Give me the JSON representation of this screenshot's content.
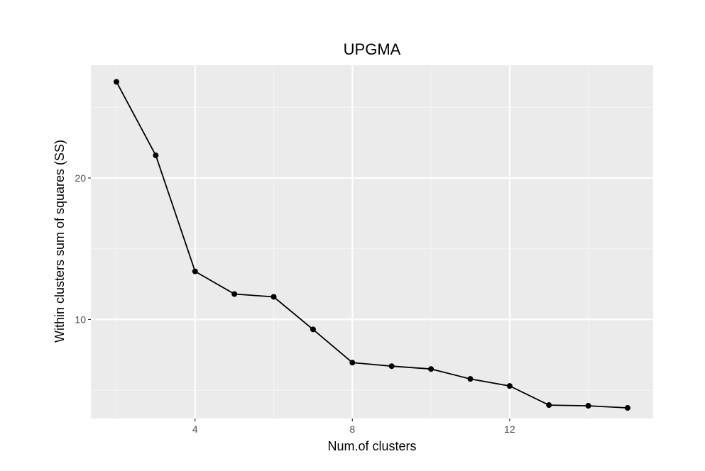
{
  "chart_data": {
    "type": "line",
    "title": "UPGMA",
    "xlabel": "Num.of clusters",
    "ylabel": "Within clusters sum of squares (SS)",
    "x": [
      2,
      3,
      4,
      5,
      6,
      7,
      8,
      9,
      10,
      11,
      12,
      13,
      14,
      15
    ],
    "series": [
      {
        "values": [
          26.8,
          21.6,
          13.4,
          11.8,
          11.6,
          9.3,
          6.95,
          6.7,
          6.5,
          5.8,
          5.3,
          3.95,
          3.9,
          3.75
        ]
      }
    ],
    "xlim": [
      1.35,
      15.65
    ],
    "ylim": [
      3.0,
      27.97
    ],
    "x_ticks": [
      4,
      8,
      12
    ],
    "x_minor_ticks": [
      2,
      6,
      10,
      14
    ],
    "y_ticks": [
      10,
      20
    ],
    "y_minor_ticks": [
      5,
      15,
      25
    ],
    "grid": true,
    "colors": {
      "panel_bg": "#ebebeb",
      "grid_major": "#ffffff",
      "grid_minor": "#f5f5f5",
      "line": "#000000",
      "point": "#000000",
      "tick_text": "#4d4d4d"
    }
  }
}
